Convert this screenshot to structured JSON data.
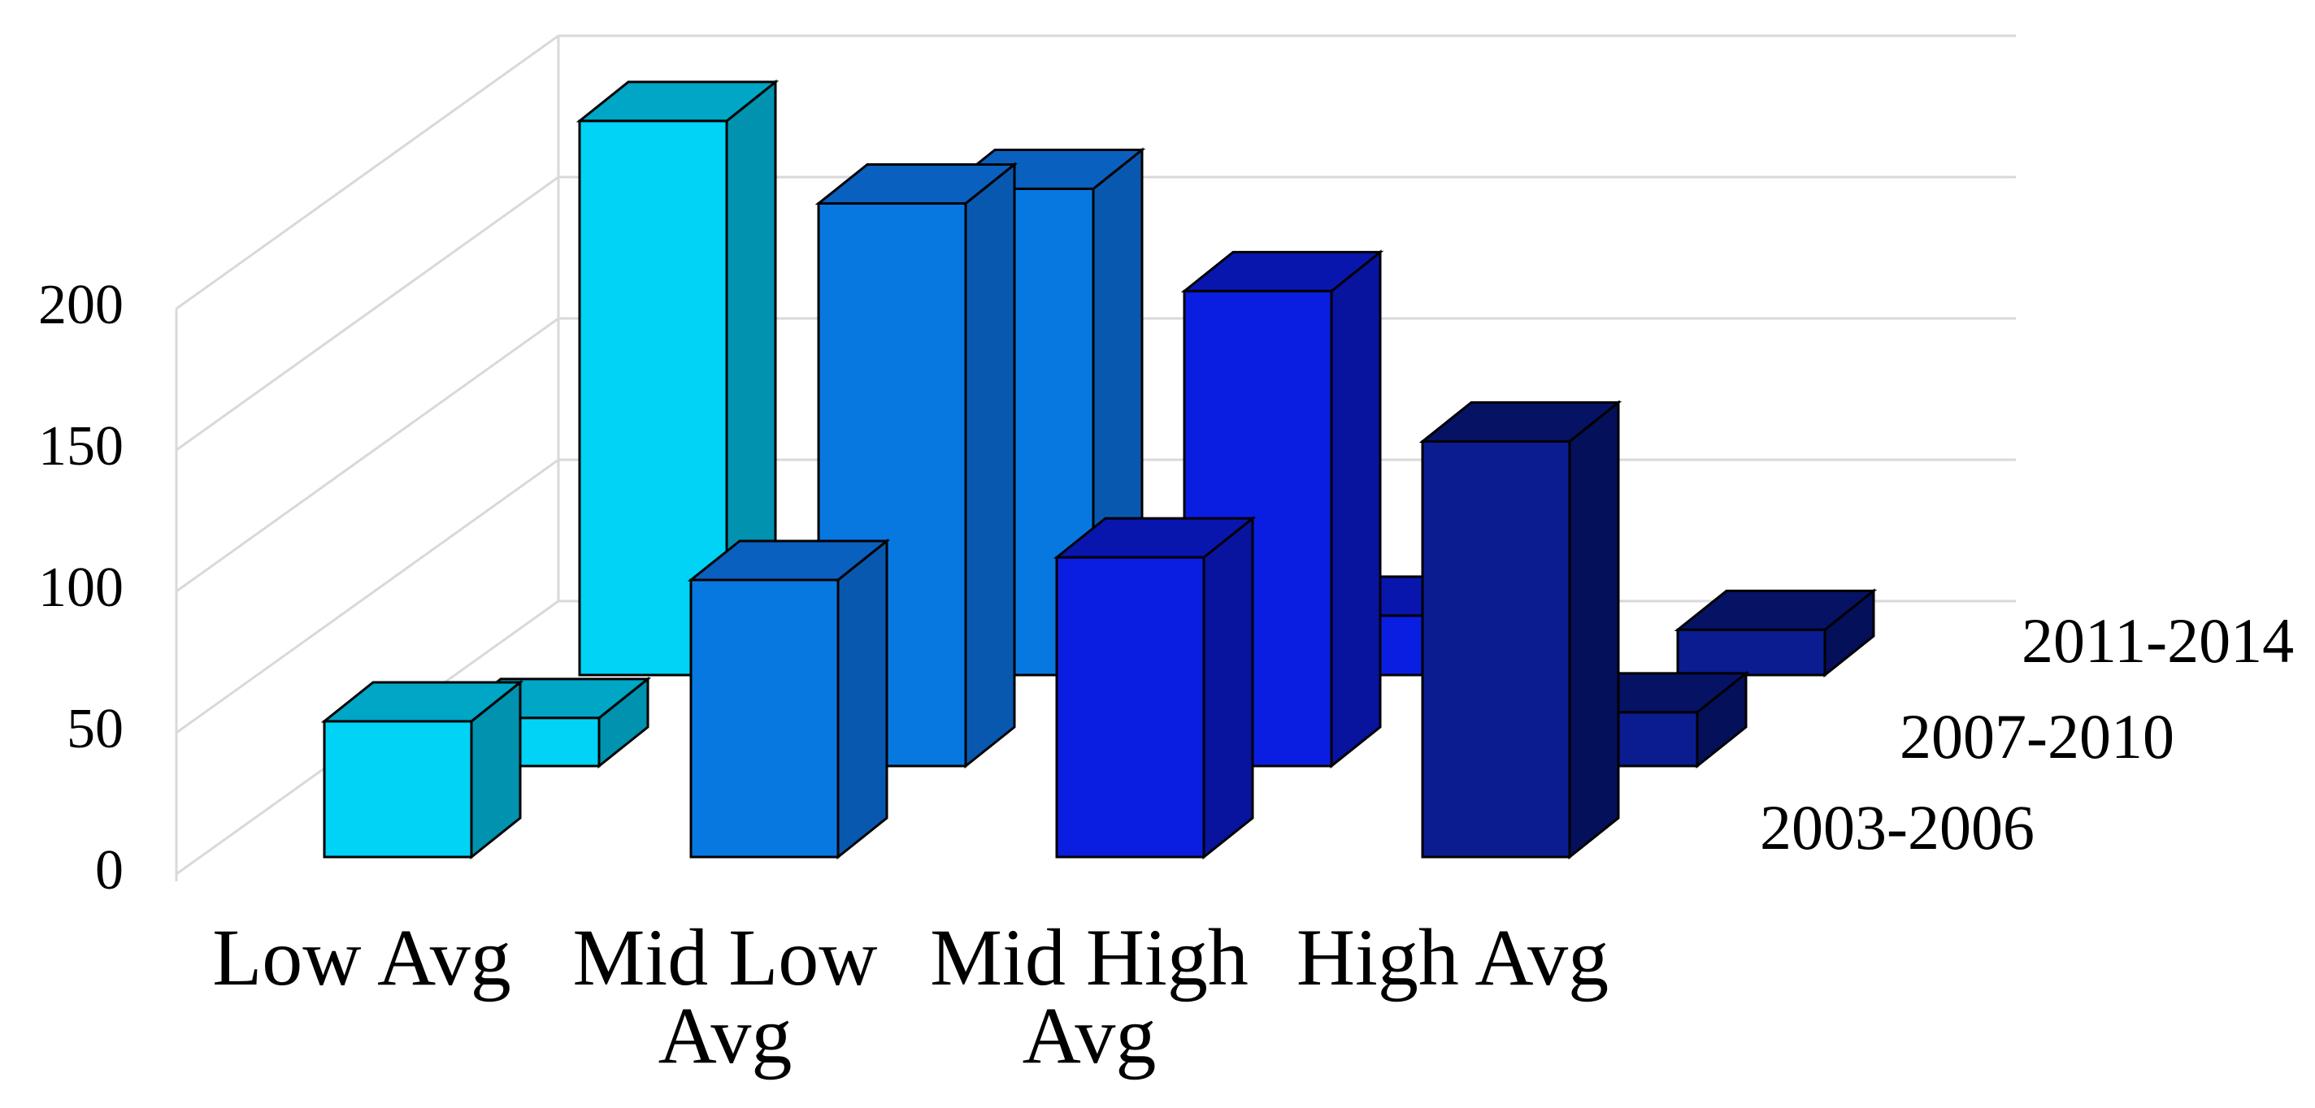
{
  "chart_data": {
    "type": "bar",
    "projection": "3d-column-depth",
    "categories": [
      "Low Avg",
      "Mid Low Avg",
      "Mid High Avg",
      "High Avg"
    ],
    "category_label_lines": [
      [
        "Low Avg"
      ],
      [
        "Mid Low",
        "Avg"
      ],
      [
        "Mid High",
        "Avg"
      ],
      [
        "High Avg"
      ]
    ],
    "series": [
      {
        "name": "2003-2006",
        "depth_row": "front",
        "values": [
          48,
          98,
          106,
          147
        ]
      },
      {
        "name": "2007-2010",
        "depth_row": "middle",
        "values": [
          17,
          199,
          168,
          19
        ]
      },
      {
        "name": "2011-2014",
        "depth_row": "back",
        "values": [
          196,
          172,
          21,
          16
        ]
      }
    ],
    "title": "",
    "xlabel": "",
    "ylabel": "",
    "ylim": [
      0,
      200
    ],
    "yticks": [
      0,
      50,
      100,
      150,
      200
    ],
    "grid": true,
    "legend_position": "right-depth-axis-labels",
    "palette": [
      {
        "category": "Low Avg",
        "front": "#00D3F5",
        "top": "#00A6C6",
        "side": "#0092AE"
      },
      {
        "category": "Mid Low Avg",
        "front": "#0878E1",
        "top": "#0A60BE",
        "side": "#0958B0"
      },
      {
        "category": "Mid High Avg",
        "front": "#0A1EE1",
        "top": "#0916AE",
        "side": "#08139E"
      },
      {
        "category": "High Avg",
        "front": "#0A1C90",
        "top": "#061264",
        "side": "#05105A"
      }
    ],
    "grid_color": "#D9D9D9",
    "outline_color": "#000000",
    "background_color": "#FFFFFF",
    "text_color": "#000000"
  }
}
